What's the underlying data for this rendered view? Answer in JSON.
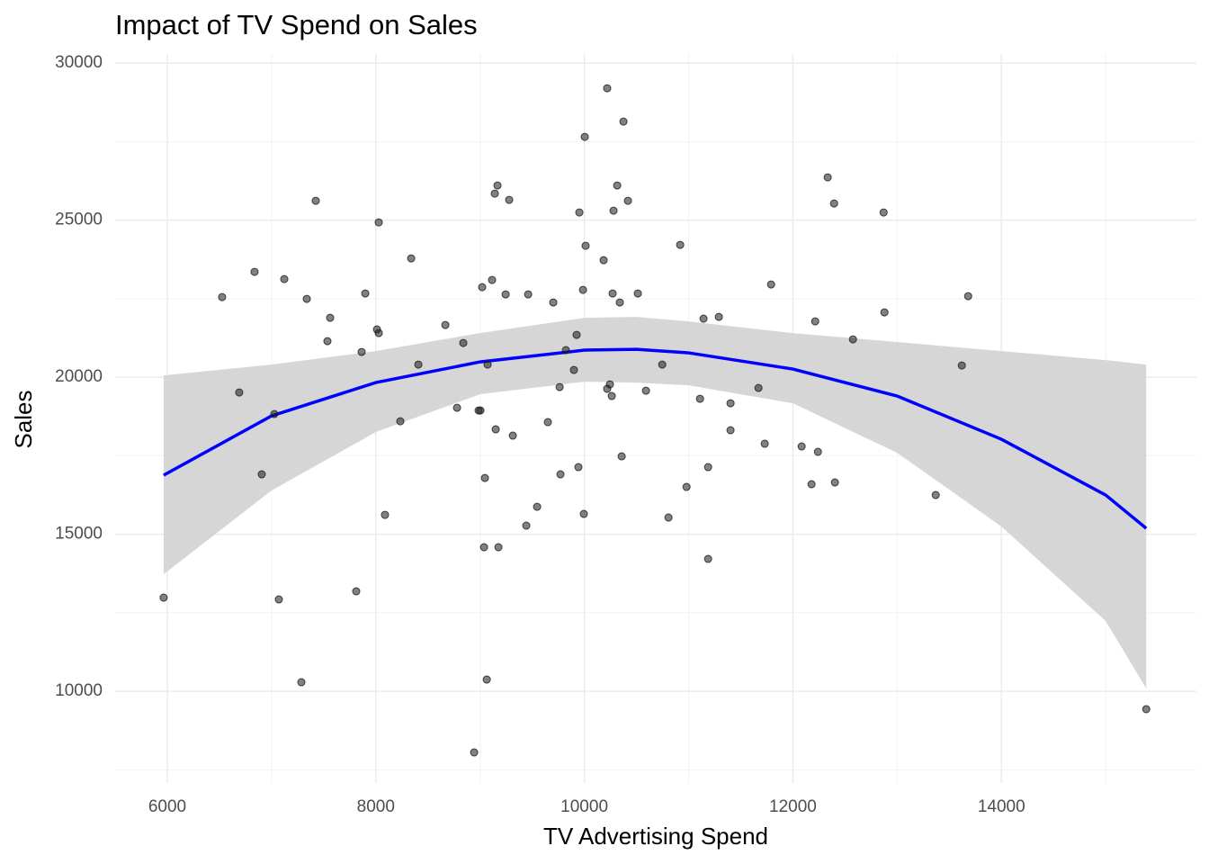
{
  "chart_data": {
    "type": "scatter",
    "title": "Impact of TV Spend on Sales",
    "x_label": "TV Advertising Spend",
    "y_label": "Sales",
    "x": [
      5965,
      6526,
      6690,
      6837,
      6906,
      7027,
      7070,
      7122,
      7286,
      7338,
      7424,
      7536,
      7562,
      7812,
      7864,
      7899,
      8011,
      8028,
      8028,
      8088,
      8235,
      8339,
      8408,
      8667,
      8779,
      8839,
      8943,
      8986,
      9003,
      9020,
      9038,
      9046,
      9064,
      9072,
      9115,
      9141,
      9150,
      9167,
      9176,
      9245,
      9279,
      9314,
      9443,
      9461,
      9547,
      9650,
      9702,
      9763,
      9771,
      9823,
      9900,
      9926,
      9943,
      9952,
      9987,
      9995,
      10004,
      10012,
      10185,
      10219,
      10219,
      10245,
      10263,
      10271,
      10280,
      10315,
      10340,
      10358,
      10375,
      10418,
      10513,
      10591,
      10747,
      10807,
      10919,
      10980,
      11109,
      11143,
      11187,
      11187,
      11290,
      11402,
      11402,
      11670,
      11730,
      11791,
      12084,
      12179,
      12214,
      12240,
      12334,
      12395,
      12403,
      12576,
      12870,
      12878,
      13370,
      13620,
      13681,
      15389
    ],
    "y": [
      12982,
      22551,
      19514,
      23353,
      16907,
      18827,
      12925,
      23124,
      10289,
      22494,
      25617,
      21147,
      21892,
      13182,
      20803,
      22666,
      21520,
      24929,
      21405,
      15617,
      18597,
      23783,
      20402,
      21663,
      19027,
      21090,
      8054,
      18941,
      18941,
      22866,
      14586,
      16792,
      10375,
      20402,
      23095,
      25846,
      18340,
      26104,
      14586,
      22637,
      25645,
      18139,
      15274,
      22637,
      15875,
      18569,
      22379,
      19686,
      16907,
      20861,
      20230,
      21348,
      17136,
      25244,
      22780,
      15646,
      27651,
      24184,
      23726,
      19629,
      29198,
      19772,
      19400,
      22666,
      25301,
      26104,
      22379,
      17480,
      28138,
      25617,
      22666,
      19571,
      20402,
      15532,
      24213,
      16506,
      19313,
      21864,
      17136,
      14214,
      21921,
      19170,
      18311,
      19657,
      17881,
      22952,
      17795,
      16592,
      21777,
      17623,
      26361,
      25531,
      16649,
      21204,
      25244,
      22064,
      16248,
      20373,
      22580,
      9430
    ],
    "point_color": "#1a1a1a",
    "fit": {
      "x": [
        5965,
        7000,
        8000,
        9000,
        10000,
        10500,
        11000,
        12000,
        13000,
        14000,
        15000,
        15389
      ],
      "y": [
        16879,
        18769,
        19829,
        20488,
        20861,
        20889,
        20775,
        20259,
        19400,
        18025,
        16248,
        15188
      ],
      "lower": [
        13727,
        16391,
        18254,
        19457,
        19858,
        19829,
        19743,
        19170,
        17594,
        15245,
        12237,
        10088
      ],
      "upper": [
        20058,
        20402,
        20832,
        21405,
        21892,
        21921,
        21777,
        21405,
        21119,
        20832,
        20545,
        20402
      ],
      "color": "#0000ff",
      "band_color": "#d6d6d6"
    },
    "xlim": [
      5500,
      15870
    ],
    "ylim": [
      7080,
      30290
    ],
    "xticks": [
      6000,
      8000,
      10000,
      12000,
      14000
    ],
    "yticks": [
      10000,
      15000,
      20000,
      25000,
      30000
    ],
    "x_minor_grid": [
      7000,
      9000,
      11000,
      13000,
      15000
    ],
    "y_minor_grid": [
      7500,
      12500,
      17500,
      22500,
      27500
    ],
    "grid": true
  }
}
